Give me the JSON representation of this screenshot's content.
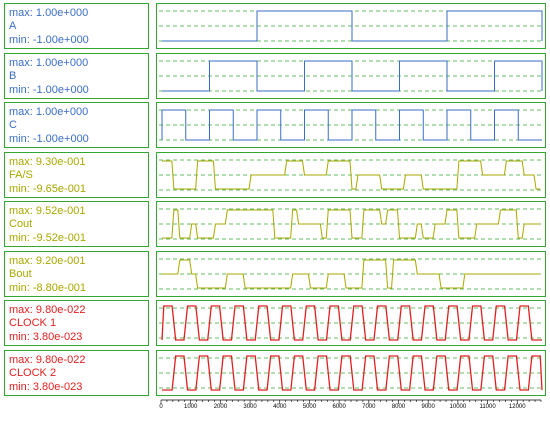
{
  "colors": {
    "frame": "#32a832",
    "grid": "#32a832",
    "digital": "#3a6ec6",
    "analog": "#a8a800",
    "clock": "#e02020"
  },
  "signals": [
    {
      "name": "A",
      "max": "max: 1.00e+000",
      "min": "min: -1.00e+000",
      "color": "#3a6ec6",
      "kind": "square",
      "period": 6400,
      "phase": 3200
    },
    {
      "name": "B",
      "max": "max: 1.00e+000",
      "min": "min: -1.00e+000",
      "color": "#3a6ec6",
      "kind": "square",
      "period": 3200,
      "phase": 1600
    },
    {
      "name": "C",
      "max": "max: 1.00e+000",
      "min": "min: -1.00e+000",
      "color": "#3a6ec6",
      "kind": "square",
      "period": 1600,
      "phase": 0
    },
    {
      "name": "FA/S",
      "max": "max: 9.30e-001",
      "min": "min: -9.65e-001",
      "color": "#a8a800",
      "kind": "pulse",
      "seed": 3
    },
    {
      "name": "Cout",
      "max": "max: 9.52e-001",
      "min": "min: -9.52e-001",
      "color": "#a8a800",
      "kind": "pulse",
      "seed": 7
    },
    {
      "name": "Bout",
      "max": "max: 9.20e-001",
      "min": "min: -8.80e-001",
      "color": "#a8a800",
      "kind": "pulse",
      "seed": 11
    },
    {
      "name": "CLOCK 1",
      "max": "max: 9.80e-022",
      "min": "min: 3.80e-023",
      "color": "#e02020",
      "kind": "clock",
      "period": 800,
      "phase": 0
    },
    {
      "name": "CLOCK 2",
      "max": "max: 9.80e-022",
      "min": "min: 3.80e-023",
      "color": "#e02020",
      "kind": "clock",
      "period": 800,
      "phase": 400
    }
  ],
  "axis": {
    "ticks": [
      "0",
      "1000",
      "2000",
      "3000",
      "4000",
      "5000",
      "6000",
      "7000",
      "8000",
      "9000",
      "10000",
      "11000",
      "12000"
    ],
    "range": [
      0,
      12800
    ]
  }
}
